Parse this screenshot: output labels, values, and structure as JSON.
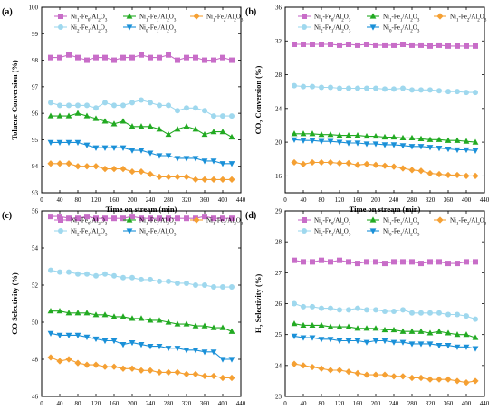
{
  "chart_data": [
    {
      "panel_label": "(a)",
      "type": "line",
      "xlabel": "Time on stream (min)",
      "ylabel": "Toluene Conversion (%)",
      "xlim": [
        0,
        440
      ],
      "ylim": [
        93,
        100
      ],
      "xticks": [
        0,
        40,
        80,
        120,
        160,
        200,
        240,
        280,
        320,
        360,
        400,
        440
      ],
      "yticks": [
        93,
        94,
        95,
        96,
        97,
        98,
        99,
        100
      ],
      "x": [
        20,
        40,
        60,
        80,
        100,
        120,
        140,
        160,
        180,
        200,
        220,
        240,
        260,
        280,
        300,
        320,
        340,
        360,
        380,
        400,
        420
      ],
      "series": [
        {
          "name": "Ni₁-Fe₀/Al₂O₃",
          "color": "#c86dc8",
          "marker": "square",
          "values": [
            98.1,
            98.1,
            98.2,
            98.1,
            98.0,
            98.1,
            98.1,
            98.0,
            98.1,
            98.1,
            98.2,
            98.1,
            98.1,
            98.2,
            98.0,
            98.1,
            98.1,
            98.0,
            98.0,
            98.1,
            98.0
          ]
        },
        {
          "name": "Ni₁-Fe₁/Al₂O₃",
          "color": "#22aa22",
          "marker": "triangle-up",
          "values": [
            95.9,
            95.9,
            95.9,
            96.0,
            95.9,
            95.8,
            95.7,
            95.6,
            95.7,
            95.5,
            95.5,
            95.5,
            95.4,
            95.2,
            95.4,
            95.5,
            95.4,
            95.2,
            95.3,
            95.3,
            95.1
          ]
        },
        {
          "name": "Ni₁-Fe₂/Al₂O₃",
          "color": "#f5a033",
          "marker": "diamond",
          "values": [
            94.1,
            94.1,
            94.1,
            94.0,
            94.0,
            94.0,
            93.9,
            93.9,
            93.9,
            93.8,
            93.8,
            93.7,
            93.6,
            93.6,
            93.6,
            93.6,
            93.5,
            93.5,
            93.5,
            93.5,
            93.5
          ]
        },
        {
          "name": "Ni₂-Fe₁/Al₂O₃",
          "color": "#9fd8ee",
          "marker": "circle",
          "values": [
            96.4,
            96.3,
            96.3,
            96.3,
            96.3,
            96.2,
            96.4,
            96.3,
            96.3,
            96.4,
            96.5,
            96.4,
            96.3,
            96.3,
            96.1,
            96.2,
            96.2,
            96.1,
            95.9,
            95.9,
            95.9
          ]
        },
        {
          "name": "Ni₀-Fe₁/Al₂O₃",
          "color": "#1a90d8",
          "marker": "triangle-down",
          "values": [
            94.9,
            94.9,
            94.9,
            94.9,
            94.8,
            94.7,
            94.7,
            94.7,
            94.7,
            94.6,
            94.6,
            94.5,
            94.4,
            94.4,
            94.3,
            94.3,
            94.3,
            94.2,
            94.2,
            94.1,
            94.1
          ]
        }
      ]
    },
    {
      "panel_label": "(b)",
      "type": "line",
      "xlabel": "Time on stream (min)",
      "ylabel": "CO₂ Conversion (%)",
      "xlim": [
        0,
        440
      ],
      "ylim": [
        14,
        36
      ],
      "xticks": [
        0,
        40,
        80,
        120,
        160,
        200,
        240,
        280,
        320,
        360,
        400,
        440
      ],
      "yticks": [
        16,
        20,
        24,
        28,
        32,
        36
      ],
      "x": [
        20,
        40,
        60,
        80,
        100,
        120,
        140,
        160,
        180,
        200,
        220,
        240,
        260,
        280,
        300,
        320,
        340,
        360,
        380,
        400,
        420
      ],
      "series": [
        {
          "name": "Ni₁-Fe₀/Al₂O₃",
          "color": "#c86dc8",
          "marker": "square",
          "values": [
            31.6,
            31.6,
            31.6,
            31.6,
            31.6,
            31.5,
            31.6,
            31.5,
            31.6,
            31.5,
            31.5,
            31.5,
            31.6,
            31.5,
            31.5,
            31.4,
            31.5,
            31.4,
            31.4,
            31.4,
            31.4
          ]
        },
        {
          "name": "Ni₁-Fe₁/Al₂O₃",
          "color": "#22aa22",
          "marker": "triangle-up",
          "values": [
            21.0,
            21.0,
            21.0,
            20.9,
            20.9,
            20.8,
            20.8,
            20.8,
            20.7,
            20.7,
            20.6,
            20.6,
            20.5,
            20.5,
            20.4,
            20.3,
            20.3,
            20.2,
            20.2,
            20.1,
            20.0
          ]
        },
        {
          "name": "Ni₁-Fe₂/Al₂O₃",
          "color": "#f5a033",
          "marker": "diamond",
          "values": [
            17.6,
            17.4,
            17.6,
            17.6,
            17.6,
            17.5,
            17.5,
            17.3,
            17.4,
            17.3,
            17.2,
            17.1,
            16.9,
            16.7,
            16.6,
            16.3,
            16.2,
            16.1,
            16.1,
            16.0,
            16.0
          ]
        },
        {
          "name": "Ni₂-Fe₁/Al₂O₃",
          "color": "#9fd8ee",
          "marker": "circle",
          "values": [
            26.7,
            26.6,
            26.6,
            26.5,
            26.5,
            26.4,
            26.4,
            26.4,
            26.4,
            26.4,
            26.3,
            26.3,
            26.4,
            26.2,
            26.2,
            26.2,
            26.1,
            26.0,
            26.0,
            25.9,
            25.9
          ]
        },
        {
          "name": "Ni₀-Fe₁/Al₂O₃",
          "color": "#1a90d8",
          "marker": "triangle-down",
          "values": [
            20.3,
            20.2,
            20.2,
            20.1,
            20.1,
            20.0,
            19.9,
            19.9,
            19.8,
            19.8,
            19.7,
            19.7,
            19.6,
            19.5,
            19.5,
            19.4,
            19.3,
            19.2,
            19.1,
            19.1,
            19.0
          ]
        }
      ]
    },
    {
      "panel_label": "(c)",
      "type": "line",
      "xlabel": "Time on stream (min)",
      "ylabel": "CO Selectivity (%)",
      "xlim": [
        0,
        440
      ],
      "ylim": [
        46,
        56
      ],
      "xticks": [
        0,
        40,
        80,
        120,
        160,
        200,
        240,
        280,
        320,
        360,
        400,
        440
      ],
      "yticks": [
        46,
        48,
        50,
        52,
        54,
        56
      ],
      "x": [
        20,
        40,
        60,
        80,
        100,
        120,
        140,
        160,
        180,
        200,
        220,
        240,
        260,
        280,
        300,
        320,
        340,
        360,
        380,
        400,
        420
      ],
      "series": [
        {
          "name": "Ni₁-Fe₀/Al₂O₃",
          "color": "#c86dc8",
          "marker": "square",
          "values": [
            55.7,
            55.7,
            55.6,
            55.6,
            55.7,
            55.6,
            55.6,
            55.6,
            55.6,
            55.7,
            55.6,
            55.6,
            55.6,
            55.6,
            55.6,
            55.6,
            55.6,
            55.7,
            55.6,
            55.6,
            55.6
          ]
        },
        {
          "name": "Ni₁-Fe₁/Al₂O₃",
          "color": "#22aa22",
          "marker": "triangle-up",
          "values": [
            50.6,
            50.6,
            50.5,
            50.5,
            50.5,
            50.4,
            50.4,
            50.3,
            50.3,
            50.2,
            50.2,
            50.1,
            50.1,
            50.0,
            49.9,
            49.9,
            49.8,
            49.8,
            49.7,
            49.7,
            49.5
          ]
        },
        {
          "name": "Ni₁-Fe₂/Al₂O₃",
          "color": "#f5a033",
          "marker": "diamond",
          "values": [
            48.1,
            47.9,
            48.0,
            47.8,
            47.7,
            47.7,
            47.6,
            47.6,
            47.5,
            47.5,
            47.4,
            47.4,
            47.3,
            47.3,
            47.3,
            47.2,
            47.2,
            47.1,
            47.1,
            47.0,
            47.0
          ]
        },
        {
          "name": "Ni₂-Fe₁/Al₂O₃",
          "color": "#9fd8ee",
          "marker": "circle",
          "values": [
            52.8,
            52.7,
            52.7,
            52.6,
            52.6,
            52.5,
            52.6,
            52.5,
            52.4,
            52.4,
            52.3,
            52.3,
            52.2,
            52.2,
            52.1,
            52.1,
            52.0,
            52.0,
            51.9,
            51.9,
            51.9
          ]
        },
        {
          "name": "Ni₀-Fe₁/Al₂O₃",
          "color": "#1a90d8",
          "marker": "triangle-down",
          "values": [
            49.4,
            49.3,
            49.3,
            49.3,
            49.2,
            49.1,
            49.0,
            49.0,
            48.8,
            48.9,
            48.8,
            48.7,
            48.7,
            48.6,
            48.6,
            48.5,
            48.5,
            48.4,
            48.4,
            48.0,
            48.0
          ]
        }
      ]
    },
    {
      "panel_label": "(d)",
      "type": "line",
      "xlabel": "Time on stream (min)",
      "ylabel": "H₂ Selectivity (%)",
      "xlim": [
        0,
        440
      ],
      "ylim": [
        23,
        29
      ],
      "xticks": [
        0,
        40,
        80,
        120,
        160,
        200,
        240,
        280,
        320,
        360,
        400,
        440
      ],
      "yticks": [
        23,
        24,
        25,
        26,
        27,
        28,
        29
      ],
      "x": [
        20,
        40,
        60,
        80,
        100,
        120,
        140,
        160,
        180,
        200,
        220,
        240,
        260,
        280,
        300,
        320,
        340,
        360,
        380,
        400,
        420
      ],
      "series": [
        {
          "name": "Ni₁-Fe₀/Al₂O₃",
          "color": "#c86dc8",
          "marker": "square",
          "values": [
            27.4,
            27.35,
            27.35,
            27.4,
            27.35,
            27.4,
            27.35,
            27.3,
            27.35,
            27.35,
            27.3,
            27.35,
            27.35,
            27.35,
            27.3,
            27.35,
            27.35,
            27.3,
            27.3,
            27.35,
            27.35
          ]
        },
        {
          "name": "Ni₁-Fe₁/Al₂O₃",
          "color": "#22aa22",
          "marker": "triangle-up",
          "values": [
            25.35,
            25.3,
            25.3,
            25.3,
            25.25,
            25.25,
            25.25,
            25.2,
            25.2,
            25.2,
            25.15,
            25.15,
            25.1,
            25.1,
            25.1,
            25.05,
            25.1,
            25.05,
            25.0,
            25.0,
            24.9
          ]
        },
        {
          "name": "Ni₁-Fe₂/Al₂O₃",
          "color": "#f5a033",
          "marker": "diamond",
          "values": [
            24.05,
            24.0,
            23.95,
            23.9,
            23.85,
            23.85,
            23.8,
            23.75,
            23.7,
            23.7,
            23.7,
            23.65,
            23.65,
            23.6,
            23.6,
            23.55,
            23.55,
            23.55,
            23.5,
            23.45,
            23.5
          ]
        },
        {
          "name": "Ni₂-Fe₁/Al₂O₃",
          "color": "#9fd8ee",
          "marker": "circle",
          "values": [
            26.0,
            25.9,
            25.9,
            25.85,
            25.85,
            25.8,
            25.8,
            25.85,
            25.8,
            25.8,
            25.75,
            25.75,
            25.8,
            25.7,
            25.7,
            25.7,
            25.7,
            25.65,
            25.65,
            25.6,
            25.5
          ]
        },
        {
          "name": "Ni₀-Fe₁/Al₂O₃",
          "color": "#1a90d8",
          "marker": "triangle-down",
          "values": [
            24.95,
            24.9,
            24.9,
            24.85,
            24.85,
            24.8,
            24.8,
            24.8,
            24.75,
            24.8,
            24.8,
            24.75,
            24.75,
            24.7,
            24.7,
            24.7,
            24.65,
            24.65,
            24.6,
            24.6,
            24.55
          ]
        }
      ]
    }
  ]
}
